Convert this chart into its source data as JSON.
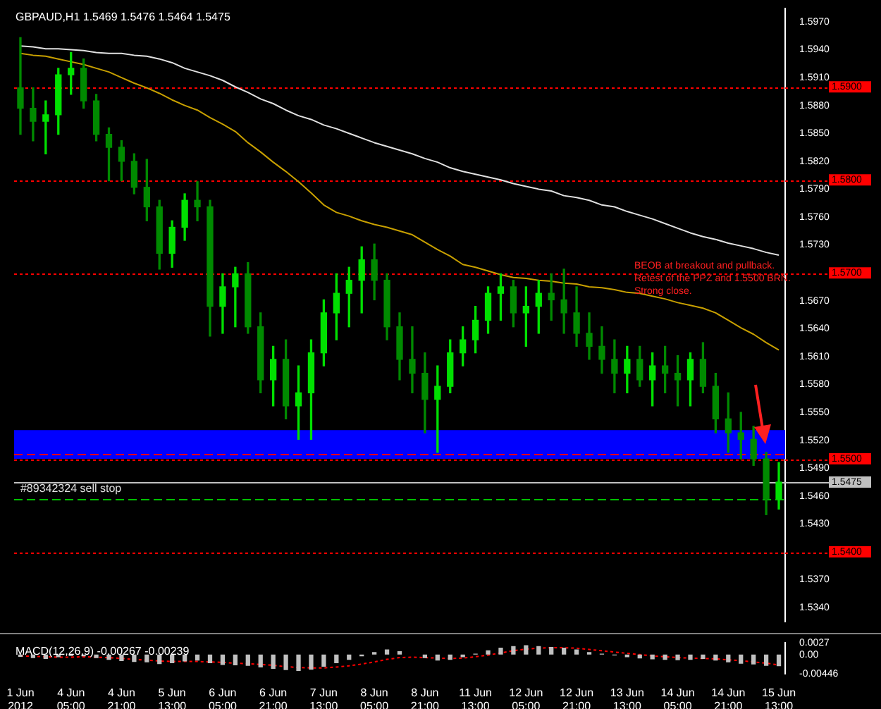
{
  "chart_data": [
    {
      "type": "candlestick",
      "title": "GBPAUD,H1 1.5469 1.5476 1.5464 1.5475",
      "categories": [
        "1 Jun 2012",
        null,
        null,
        null,
        "4 Jun 05:00",
        null,
        null,
        null,
        "4 Jun 21:00",
        null,
        null,
        null,
        "5 Jun 13:00",
        null,
        null,
        null,
        "6 Jun 05:00",
        null,
        null,
        null,
        "6 Jun 21:00",
        null,
        null,
        null,
        "7 Jun 13:00",
        null,
        null,
        null,
        "8 Jun 05:00",
        null,
        null,
        null,
        "8 Jun 21:00",
        null,
        null,
        null,
        "11 Jun 13:00",
        null,
        null,
        null,
        "12 Jun 05:00",
        null,
        null,
        null,
        "12 Jun 21:00",
        null,
        null,
        null,
        "13 Jun 13:00",
        null,
        null,
        null,
        "14 Jun 05:00",
        null,
        null,
        null,
        "14 Jun 21:00",
        null,
        null,
        null,
        "15 Jun 13:00"
      ],
      "ohlc": [
        [
          1.5899,
          1.5953,
          1.5849,
          1.5877
        ],
        [
          1.5877,
          1.5899,
          1.5842,
          1.5863
        ],
        [
          1.5863,
          1.5885,
          1.5828,
          1.587
        ],
        [
          1.587,
          1.592,
          1.5849,
          1.5913
        ],
        [
          1.5913,
          1.5937,
          1.5892,
          1.592
        ],
        [
          1.592,
          1.593,
          1.5877,
          1.5885
        ],
        [
          1.5885,
          1.5892,
          1.5842,
          1.5849
        ],
        [
          1.5849,
          1.5856,
          1.5799,
          1.5835
        ],
        [
          1.5835,
          1.5842,
          1.5799,
          1.582
        ],
        [
          1.582,
          1.5828,
          1.5785,
          1.5792
        ],
        [
          1.5792,
          1.5822,
          1.5756,
          1.5771
        ],
        [
          1.5771,
          1.5778,
          1.5704,
          1.5721
        ],
        [
          1.5721,
          1.5756,
          1.5706,
          1.5749
        ],
        [
          1.5749,
          1.5785,
          1.5735,
          1.5778
        ],
        [
          1.5778,
          1.5798,
          1.5756,
          1.5771
        ],
        [
          1.5771,
          1.5778,
          1.5632,
          1.5664
        ],
        [
          1.5664,
          1.5699,
          1.5635,
          1.5685
        ],
        [
          1.5685,
          1.5706,
          1.5642,
          1.5699
        ],
        [
          1.5699,
          1.5711,
          1.5635,
          1.5642
        ],
        [
          1.5642,
          1.5657,
          1.5571,
          1.5585
        ],
        [
          1.5585,
          1.5621,
          1.5557,
          1.5607
        ],
        [
          1.5607,
          1.5628,
          1.5543,
          1.5557
        ],
        [
          1.5557,
          1.56,
          1.5521,
          1.5571
        ],
        [
          1.5571,
          1.5628,
          1.5521,
          1.5614
        ],
        [
          1.5614,
          1.5671,
          1.56,
          1.5657
        ],
        [
          1.5657,
          1.5699,
          1.5628,
          1.5678
        ],
        [
          1.5678,
          1.5706,
          1.5642,
          1.5692
        ],
        [
          1.5692,
          1.5728,
          1.5657,
          1.5714
        ],
        [
          1.5714,
          1.5731,
          1.5671,
          1.5692
        ],
        [
          1.5692,
          1.5699,
          1.5628,
          1.5642
        ],
        [
          1.5642,
          1.5657,
          1.5585,
          1.5607
        ],
        [
          1.5607,
          1.5642,
          1.5571,
          1.5592
        ],
        [
          1.5592,
          1.5614,
          1.5528,
          1.5564
        ],
        [
          1.5564,
          1.56,
          1.5507,
          1.5578
        ],
        [
          1.5578,
          1.5628,
          1.5571,
          1.5614
        ],
        [
          1.5614,
          1.5642,
          1.56,
          1.5628
        ],
        [
          1.5628,
          1.5664,
          1.5614,
          1.5649
        ],
        [
          1.5649,
          1.5685,
          1.5635,
          1.5678
        ],
        [
          1.5678,
          1.5699,
          1.5649,
          1.5685
        ],
        [
          1.5685,
          1.5692,
          1.5642,
          1.5657
        ],
        [
          1.5657,
          1.5685,
          1.5621,
          1.5664
        ],
        [
          1.5664,
          1.5692,
          1.5635,
          1.5678
        ],
        [
          1.5678,
          1.5699,
          1.5649,
          1.5671
        ],
        [
          1.5671,
          1.5704,
          1.5635,
          1.5657
        ],
        [
          1.5657,
          1.5685,
          1.5621,
          1.5635
        ],
        [
          1.5635,
          1.5657,
          1.5607,
          1.5621
        ],
        [
          1.5621,
          1.5642,
          1.5592,
          1.5607
        ],
        [
          1.5607,
          1.5628,
          1.5571,
          1.5592
        ],
        [
          1.5592,
          1.5621,
          1.5571,
          1.5607
        ],
        [
          1.5607,
          1.5621,
          1.5578,
          1.5585
        ],
        [
          1.5585,
          1.5614,
          1.5557,
          1.56
        ],
        [
          1.56,
          1.5621,
          1.5571,
          1.5592
        ],
        [
          1.5592,
          1.5611,
          1.5557,
          1.5585
        ],
        [
          1.5585,
          1.5614,
          1.5557,
          1.5607
        ],
        [
          1.5607,
          1.5625,
          1.5571,
          1.5578
        ],
        [
          1.5578,
          1.5592,
          1.5528,
          1.5543
        ],
        [
          1.5543,
          1.5571,
          1.5507,
          1.5528
        ],
        [
          1.5528,
          1.555,
          1.55,
          1.5521
        ],
        [
          1.5521,
          1.5535,
          1.5493,
          1.55
        ],
        [
          1.55,
          1.5507,
          1.544,
          1.5457
        ],
        [
          1.5457,
          1.5496,
          1.5446,
          1.5475
        ]
      ],
      "series": [
        {
          "type": "line",
          "color": "#e0e0e0",
          "values": [
            1.5944,
            1.5943,
            1.5941,
            1.5941,
            1.594,
            1.5939,
            1.5937,
            1.5936,
            1.5936,
            1.5934,
            1.5933,
            1.593,
            1.5926,
            1.592,
            1.5916,
            1.5912,
            1.5907,
            1.59,
            1.5894,
            1.5887,
            1.5882,
            1.5875,
            1.5869,
            1.5865,
            1.5859,
            1.5855,
            1.585,
            1.5845,
            1.584,
            1.5836,
            1.5832,
            1.5828,
            1.5823,
            1.5819,
            1.5813,
            1.5809,
            1.5806,
            1.5803,
            1.58,
            1.5796,
            1.5793,
            1.579,
            1.5788,
            1.5783,
            1.5781,
            1.5778,
            1.5773,
            1.5771,
            1.5766,
            1.5762,
            1.5758,
            1.5753,
            1.5748,
            1.5743,
            1.5739,
            1.5736,
            1.5732,
            1.5729,
            1.5726,
            1.5722,
            1.5719
          ]
        },
        {
          "type": "line",
          "color": "#c8a000",
          "values": [
            1.5936,
            1.5934,
            1.5933,
            1.593,
            1.5927,
            1.5924,
            1.592,
            1.5916,
            1.591,
            1.5904,
            1.5899,
            1.5893,
            1.5886,
            1.588,
            1.5875,
            1.5867,
            1.586,
            1.5852,
            1.584,
            1.583,
            1.5819,
            1.5809,
            1.5798,
            1.5786,
            1.5773,
            1.5765,
            1.5761,
            1.5756,
            1.5752,
            1.5749,
            1.5745,
            1.5741,
            1.5733,
            1.5725,
            1.5718,
            1.5709,
            1.5706,
            1.5702,
            1.5698,
            1.5695,
            1.5694,
            1.5692,
            1.5691,
            1.5689,
            1.5688,
            1.5685,
            1.5684,
            1.5682,
            1.5679,
            1.5678,
            1.5675,
            1.5672,
            1.5668,
            1.5665,
            1.5662,
            1.5657,
            1.5649,
            1.5641,
            1.5634,
            1.5625,
            1.5617
          ]
        }
      ],
      "ylim": [
        1.5325,
        1.5984
      ],
      "yticks": [
        {
          "value": 1.534,
          "label": "1.5340"
        },
        {
          "value": 1.537,
          "label": "1.5370"
        },
        {
          "value": 1.543,
          "label": "1.5430"
        },
        {
          "value": 1.546,
          "label": "1.5460"
        },
        {
          "value": 1.549,
          "label": "1.5490"
        },
        {
          "value": 1.552,
          "label": "1.5520"
        },
        {
          "value": 1.555,
          "label": "1.5550"
        },
        {
          "value": 1.558,
          "label": "1.5580"
        },
        {
          "value": 1.561,
          "label": "1.5610"
        },
        {
          "value": 1.564,
          "label": "1.5640"
        },
        {
          "value": 1.567,
          "label": "1.5670"
        },
        {
          "value": 1.573,
          "label": "1.5730"
        },
        {
          "value": 1.576,
          "label": "1.5760"
        },
        {
          "value": 1.579,
          "label": "1.5790"
        },
        {
          "value": 1.582,
          "label": "1.5820"
        },
        {
          "value": 1.585,
          "label": "1.5850"
        },
        {
          "value": 1.588,
          "label": "1.5880"
        },
        {
          "value": 1.591,
          "label": "1.5910"
        },
        {
          "value": 1.594,
          "label": "1.5940"
        },
        {
          "value": 1.597,
          "label": "1.5970"
        }
      ],
      "tick_labels": "y",
      "bands": [
        {
          "axis": "y",
          "from": 1.55,
          "to": 1.5531,
          "color": "#0000ff"
        }
      ],
      "ref_lines": [
        {
          "axis": "y",
          "value": 1.59,
          "label": "1.5900",
          "color": "#ff0000",
          "line_style": "dotted"
        },
        {
          "axis": "y",
          "value": 1.58,
          "label": "1.5800",
          "color": "#ff0000",
          "line_style": "dotted"
        },
        {
          "axis": "y",
          "value": 1.57,
          "label": "1.5700",
          "color": "#ff0000",
          "line_style": "dotted"
        },
        {
          "axis": "y",
          "value": 1.55,
          "label": "1.5500",
          "color": "#ff0000",
          "line_style": "dotted"
        },
        {
          "axis": "y",
          "value": 1.54,
          "label": "1.5400",
          "color": "#ff0000",
          "line_style": "dotted"
        },
        {
          "axis": "y",
          "value": 1.5505,
          "color": "#ff0000",
          "line_style": "dashed"
        },
        {
          "axis": "y",
          "value": 1.5475,
          "label": "1.5475",
          "color": "#c0c0c0",
          "line_style": "solid"
        },
        {
          "axis": "y",
          "value": 1.5457,
          "color": "#00c000",
          "line_style": "dashed"
        }
      ],
      "annotations": [
        {
          "text": "#89342324 sell stop",
          "x": "1 Jun 2012",
          "y": 1.5457
        },
        "BEOB at breakout and pullback.",
        "Retest of the PPZ and 1.5500 BRN.",
        "Strong close."
      ]
    },
    {
      "type": "bar",
      "title": "MACD(12,26,9) -0.00267 -0.00239",
      "categories": [
        "1 Jun 2012",
        null,
        null,
        null,
        "4 Jun 05:00",
        null,
        null,
        null,
        "4 Jun 21:00",
        null,
        null,
        null,
        "5 Jun 13:00",
        null,
        null,
        null,
        "6 Jun 05:00",
        null,
        null,
        null,
        "6 Jun 21:00",
        null,
        null,
        null,
        "7 Jun 13:00",
        null,
        null,
        null,
        "8 Jun 05:00",
        null,
        null,
        null,
        "8 Jun 21:00",
        null,
        null,
        null,
        "11 Jun 13:00",
        null,
        null,
        null,
        "12 Jun 05:00",
        null,
        null,
        null,
        "12 Jun 21:00",
        null,
        null,
        null,
        "13 Jun 13:00",
        null,
        null,
        null,
        "14 Jun 05:00",
        null,
        null,
        null,
        "14 Jun 21:00",
        null,
        null,
        null,
        "15 Jun 13:00"
      ],
      "series": [
        {
          "color": "#c0c0c0",
          "values": [
            -0.0005,
            -0.0008,
            -0.001,
            -0.0006,
            -0.0003,
            -0.0004,
            -0.0008,
            -0.0012,
            -0.0015,
            -0.0017,
            -0.0018,
            -0.0022,
            -0.002,
            -0.0016,
            -0.0014,
            -0.002,
            -0.0024,
            -0.0025,
            -0.0026,
            -0.003,
            -0.0033,
            -0.0036,
            -0.0038,
            -0.0035,
            -0.0028,
            -0.002,
            -0.0012,
            -0.0004,
            0.0006,
            0.0012,
            0.0008,
            0,
            -0.0008,
            -0.0014,
            -0.0012,
            -0.0006,
            0.0002,
            0.001,
            0.0016,
            0.002,
            0.0022,
            0.002,
            0.0018,
            0.0016,
            0.0012,
            0.0006,
            0.0002,
            -0.0002,
            -0.0006,
            -0.0009,
            -0.0011,
            -0.0012,
            -0.0013,
            -0.0012,
            -0.001,
            -0.0014,
            -0.0018,
            -0.0021,
            -0.0023,
            -0.0026,
            -0.0027
          ]
        },
        {
          "type": "line",
          "color": "#ff0000",
          "line_style": "dotted",
          "values": [
            -0.0003,
            -0.0004,
            -0.0005,
            -0.0006,
            -0.0006,
            -0.0005,
            -0.0006,
            -0.0007,
            -0.0009,
            -0.0011,
            -0.0013,
            -0.0015,
            -0.0016,
            -0.0016,
            -0.0016,
            -0.0017,
            -0.0018,
            -0.002,
            -0.0021,
            -0.0023,
            -0.0025,
            -0.0028,
            -0.003,
            -0.0031,
            -0.0031,
            -0.0029,
            -0.0026,
            -0.0022,
            -0.0017,
            -0.0011,
            -0.0007,
            -0.0006,
            -0.0007,
            -0.0008,
            -0.0009,
            -0.0008,
            -0.0005,
            -0.0001,
            0.0004,
            0.0009,
            0.0013,
            0.0015,
            0.0016,
            0.0016,
            0.0015,
            0.0012,
            0.0009,
            0.0006,
            0.0003,
            0,
            -0.0003,
            -0.0005,
            -0.0007,
            -0.0008,
            -0.0009,
            -0.001,
            -0.0012,
            -0.0014,
            -0.0017,
            -0.002,
            -0.0024
          ]
        }
      ],
      "ylim": [
        -0.00446,
        0.0027
      ],
      "yticks": [
        0.0027,
        {
          "value": 0,
          "label": "0.00"
        },
        -0.00446
      ]
    }
  ]
}
